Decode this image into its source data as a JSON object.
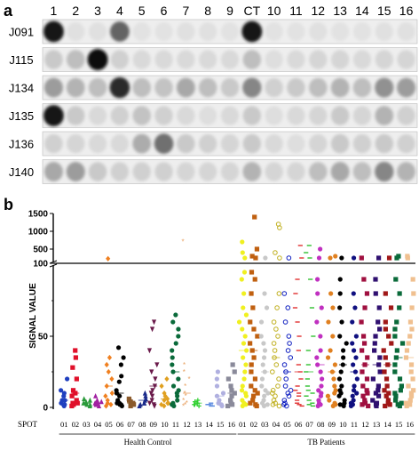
{
  "panel_a": {
    "label": "a",
    "columns": [
      "1",
      "2",
      "3",
      "4",
      "5",
      "6",
      "7",
      "8",
      "9",
      "CT",
      "10",
      "11",
      "12",
      "13",
      "14",
      "15",
      "16"
    ],
    "rows": [
      {
        "name": "J091",
        "intensity": [
          0.95,
          0.05,
          0.05,
          0.6,
          0.04,
          0.04,
          0.05,
          0.05,
          0.04,
          0.95,
          0.04,
          0.04,
          0.05,
          0.04,
          0.04,
          0.05,
          0.05
        ]
      },
      {
        "name": "J115",
        "intensity": [
          0.15,
          0.2,
          0.98,
          0.12,
          0.08,
          0.08,
          0.08,
          0.08,
          0.08,
          0.2,
          0.06,
          0.08,
          0.1,
          0.1,
          0.08,
          0.1,
          0.1
        ]
      },
      {
        "name": "J134",
        "intensity": [
          0.35,
          0.25,
          0.2,
          0.85,
          0.2,
          0.18,
          0.3,
          0.2,
          0.15,
          0.45,
          0.12,
          0.15,
          0.2,
          0.25,
          0.2,
          0.4,
          0.35
        ]
      },
      {
        "name": "J135",
        "intensity": [
          0.95,
          0.15,
          0.08,
          0.12,
          0.18,
          0.12,
          0.08,
          0.06,
          0.08,
          0.15,
          0.06,
          0.08,
          0.1,
          0.15,
          0.1,
          0.25,
          0.12
        ]
      },
      {
        "name": "J136",
        "intensity": [
          0.12,
          0.1,
          0.08,
          0.08,
          0.28,
          0.55,
          0.15,
          0.12,
          0.1,
          0.15,
          0.08,
          0.06,
          0.1,
          0.15,
          0.12,
          0.15,
          0.12
        ]
      },
      {
        "name": "J140",
        "intensity": [
          0.3,
          0.35,
          0.15,
          0.12,
          0.12,
          0.12,
          0.1,
          0.1,
          0.1,
          0.25,
          0.1,
          0.1,
          0.2,
          0.3,
          0.2,
          0.45,
          0.25
        ]
      }
    ]
  },
  "panel_b": {
    "label": "b",
    "ylabel": "SIGNAL VALUE",
    "spot_label": "SPOT",
    "upper_ticks": [
      "1500",
      "1000",
      "500",
      "100"
    ],
    "lower_ticks": [
      "100",
      "50",
      "0"
    ],
    "groups": [
      {
        "name": "Health Control",
        "spots": [
          "01",
          "02",
          "03",
          "04",
          "05",
          "06",
          "07",
          "08",
          "09",
          "10",
          "11",
          "12",
          "13",
          "14",
          "15",
          "16"
        ]
      },
      {
        "name": "TB Patients",
        "spots": [
          "01",
          "02",
          "03",
          "04",
          "05",
          "06",
          "07",
          "08",
          "09",
          "10",
          "11",
          "12",
          "13",
          "14",
          "15",
          "16"
        ]
      }
    ]
  },
  "chart_data": {
    "type": "scatter",
    "ylabel": "SIGNAL VALUE",
    "y_axis": "broken",
    "lower_ylim": [
      0,
      100
    ],
    "upper_ylim": [
      100,
      1500
    ],
    "series": [
      {
        "group": "Health Control",
        "spot": "01",
        "color": "#1f3fbf",
        "marker": "circle",
        "values": [
          1,
          2,
          3,
          5,
          8,
          10,
          12,
          20,
          5,
          2
        ]
      },
      {
        "group": "Health Control",
        "spot": "02",
        "color": "#e0102a",
        "marker": "square",
        "values": [
          2,
          3,
          5,
          8,
          10,
          12,
          20,
          28,
          35,
          40,
          3,
          1
        ]
      },
      {
        "group": "Health Control",
        "spot": "03",
        "color": "#2a9a3a",
        "marker": "triangle",
        "values": [
          1,
          2,
          3,
          4,
          5,
          6,
          3,
          2
        ]
      },
      {
        "group": "Health Control",
        "spot": "04",
        "color": "#a020a0",
        "marker": "triangle",
        "values": [
          1,
          2,
          3,
          4,
          5,
          8,
          3,
          2
        ]
      },
      {
        "group": "Health Control",
        "spot": "05",
        "color": "#f08020",
        "marker": "diamond",
        "values": [
          1,
          2,
          3,
          5,
          8,
          10,
          15,
          20,
          25,
          30,
          35,
          230
        ]
      },
      {
        "group": "Health Control",
        "spot": "06",
        "color": "#000000",
        "marker": "circle",
        "values": [
          1,
          2,
          3,
          5,
          8,
          10,
          12,
          18,
          22,
          30,
          35,
          42,
          3,
          2
        ]
      },
      {
        "group": "Health Control",
        "spot": "07",
        "color": "#8b5a2b",
        "marker": "square",
        "values": [
          1,
          2,
          3,
          4,
          5,
          6,
          3
        ]
      },
      {
        "group": "Health Control",
        "spot": "08",
        "color": "#1a2a8a",
        "marker": "triangle",
        "values": [
          1,
          2,
          3,
          5,
          6,
          8,
          10,
          3
        ]
      },
      {
        "group": "Health Control",
        "spot": "09",
        "color": "#6a1a4a",
        "marker": "triangle-down",
        "values": [
          1,
          2,
          3,
          5,
          8,
          10,
          12,
          15,
          20,
          25,
          30,
          40,
          55,
          60
        ]
      },
      {
        "group": "Health Control",
        "spot": "10",
        "color": "#e0a020",
        "marker": "diamond",
        "values": [
          1,
          2,
          3,
          5,
          6,
          8,
          10,
          15,
          20,
          3
        ]
      },
      {
        "group": "Health Control",
        "spot": "11",
        "color": "#0a6a3a",
        "marker": "circle",
        "values": [
          1,
          2,
          3,
          5,
          8,
          10,
          12,
          15,
          20,
          25,
          30,
          35,
          40,
          45,
          50,
          55,
          60,
          65
        ]
      },
      {
        "group": "Health Control",
        "spot": "12",
        "color": "#e8a060",
        "marker": "star",
        "values": [
          1,
          2,
          3,
          5,
          8,
          10,
          15,
          20,
          25,
          30,
          710
        ]
      },
      {
        "group": "Health Control",
        "spot": "13",
        "color": "#30d030",
        "marker": "plus",
        "values": [
          1,
          2,
          3,
          4,
          5,
          3,
          2
        ]
      },
      {
        "group": "Health Control",
        "spot": "14",
        "color": "#5a8ae0",
        "marker": "dash",
        "values": [
          1,
          2,
          3,
          2,
          1
        ]
      },
      {
        "group": "Health Control",
        "spot": "15",
        "color": "#b0b0e0",
        "marker": "circle",
        "values": [
          1,
          2,
          3,
          5,
          8,
          10,
          15,
          20,
          25,
          3
        ]
      },
      {
        "group": "Health Control",
        "spot": "16",
        "color": "#8a8a9a",
        "marker": "square",
        "values": [
          1,
          2,
          3,
          5,
          8,
          10,
          12,
          15,
          20,
          25,
          30
        ]
      },
      {
        "group": "TB Patients",
        "spot": "01",
        "color": "#f0f020",
        "marker": "circle",
        "values": [
          1,
          2,
          3,
          5,
          8,
          10,
          12,
          15,
          20,
          25,
          30,
          35,
          40,
          45,
          50,
          55,
          60,
          65,
          70,
          80,
          90,
          95,
          250,
          400,
          700
        ]
      },
      {
        "group": "TB Patients",
        "spot": "02",
        "color": "#c06010",
        "marker": "square",
        "values": [
          1,
          2,
          3,
          5,
          8,
          10,
          12,
          15,
          20,
          25,
          30,
          35,
          40,
          45,
          50,
          55,
          60,
          70,
          80,
          90,
          95,
          250,
          300,
          500,
          1400
        ]
      },
      {
        "group": "TB Patients",
        "spot": "03",
        "color": "#c8c8c8",
        "marker": "circle",
        "values": [
          1,
          2,
          3,
          5,
          8,
          10,
          12,
          15,
          20,
          25,
          30,
          35,
          40,
          45,
          50,
          60,
          70,
          80,
          250
        ]
      },
      {
        "group": "TB Patients",
        "spot": "04",
        "color": "#c0b020",
        "marker": "circle-open",
        "values": [
          1,
          2,
          3,
          5,
          8,
          10,
          12,
          15,
          20,
          25,
          30,
          35,
          40,
          45,
          50,
          55,
          60,
          70,
          80,
          250,
          400,
          1100,
          1200
        ]
      },
      {
        "group": "TB Patients",
        "spot": "05",
        "color": "#1020c0",
        "marker": "circle-open",
        "values": [
          1,
          2,
          3,
          5,
          8,
          10,
          12,
          15,
          20,
          25,
          30,
          35,
          40,
          45,
          50,
          60,
          70,
          80,
          250
        ]
      },
      {
        "group": "TB Patients",
        "spot": "06",
        "color": "#e03030",
        "marker": "dash",
        "values": [
          1,
          2,
          3,
          5,
          8,
          10,
          12,
          15,
          20,
          25,
          30,
          40,
          50,
          60,
          70,
          80,
          90,
          250,
          600
        ]
      },
      {
        "group": "TB Patients",
        "spot": "07",
        "color": "#30c030",
        "marker": "dash",
        "values": [
          1,
          2,
          3,
          5,
          8,
          10,
          12,
          15,
          20,
          25,
          30,
          40,
          50,
          70,
          90,
          250,
          400,
          600
        ]
      },
      {
        "group": "TB Patients",
        "spot": "08",
        "color": "#c030c0",
        "marker": "circle",
        "values": [
          1,
          2,
          3,
          5,
          8,
          10,
          12,
          15,
          20,
          25,
          30,
          35,
          40,
          50,
          60,
          70,
          80,
          90,
          250,
          500
        ]
      },
      {
        "group": "TB Patients",
        "spot": "09",
        "color": "#e08020",
        "marker": "circle",
        "values": [
          1,
          2,
          3,
          5,
          8,
          10,
          12,
          15,
          20,
          25,
          30,
          35,
          40,
          50,
          60,
          70,
          80,
          250,
          300
        ]
      },
      {
        "group": "TB Patients",
        "spot": "10",
        "color": "#000000",
        "marker": "circle",
        "values": [
          1,
          2,
          3,
          5,
          8,
          10,
          12,
          15,
          20,
          25,
          30,
          35,
          40,
          45,
          50,
          60,
          70,
          80,
          90,
          250
        ]
      },
      {
        "group": "TB Patients",
        "spot": "11",
        "color": "#101080",
        "marker": "circle",
        "values": [
          1,
          2,
          3,
          5,
          8,
          10,
          12,
          15,
          20,
          25,
          30,
          35,
          40,
          45,
          50,
          60,
          70,
          80,
          250
        ]
      },
      {
        "group": "TB Patients",
        "spot": "12",
        "color": "#a01040",
        "marker": "square",
        "values": [
          1,
          2,
          3,
          5,
          8,
          10,
          12,
          15,
          20,
          25,
          30,
          35,
          40,
          45,
          50,
          60,
          70,
          80,
          90,
          250
        ]
      },
      {
        "group": "TB Patients",
        "spot": "13",
        "color": "#301070",
        "marker": "square",
        "values": [
          1,
          2,
          3,
          5,
          8,
          10,
          12,
          15,
          20,
          25,
          30,
          35,
          40,
          45,
          50,
          55,
          60,
          70,
          80,
          90,
          250
        ]
      },
      {
        "group": "TB Patients",
        "spot": "14",
        "color": "#a01818",
        "marker": "square",
        "values": [
          1,
          2,
          3,
          5,
          8,
          10,
          12,
          15,
          20,
          25,
          30,
          35,
          40,
          45,
          50,
          55,
          60,
          70,
          80,
          250
        ]
      },
      {
        "group": "TB Patients",
        "spot": "15",
        "color": "#0a6a3a",
        "marker": "square",
        "values": [
          1,
          2,
          3,
          5,
          8,
          10,
          12,
          15,
          20,
          25,
          30,
          35,
          40,
          45,
          50,
          55,
          60,
          70,
          80,
          90,
          250,
          300
        ]
      },
      {
        "group": "TB Patients",
        "spot": "16",
        "color": "#f0c090",
        "marker": "square",
        "values": [
          1,
          2,
          3,
          5,
          8,
          10,
          12,
          15,
          20,
          25,
          30,
          35,
          40,
          45,
          50,
          55,
          60,
          70,
          80,
          90,
          250,
          300
        ]
      }
    ]
  }
}
